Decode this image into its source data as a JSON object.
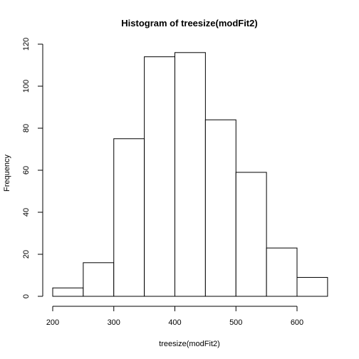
{
  "chart_data": {
    "type": "bar",
    "title": "Histogram of treesize(modFit2)",
    "xlabel": "treesize(modFit2)",
    "ylabel": "Frequency",
    "bins": [
      {
        "from": 200,
        "to": 250,
        "count": 4
      },
      {
        "from": 250,
        "to": 300,
        "count": 16
      },
      {
        "from": 300,
        "to": 350,
        "count": 75
      },
      {
        "from": 350,
        "to": 400,
        "count": 114
      },
      {
        "from": 400,
        "to": 450,
        "count": 116
      },
      {
        "from": 450,
        "to": 500,
        "count": 84
      },
      {
        "from": 500,
        "to": 550,
        "count": 59
      },
      {
        "from": 550,
        "to": 600,
        "count": 23
      },
      {
        "from": 600,
        "to": 650,
        "count": 9
      }
    ],
    "xlim": [
      200,
      650
    ],
    "ylim": [
      0,
      120
    ],
    "x_ticks": [
      200,
      300,
      400,
      500,
      600
    ],
    "y_ticks": [
      0,
      20,
      40,
      60,
      80,
      100,
      120
    ],
    "grid": false,
    "legend": "none",
    "bar_fill": "#ffffff",
    "bar_stroke": "#000000"
  }
}
